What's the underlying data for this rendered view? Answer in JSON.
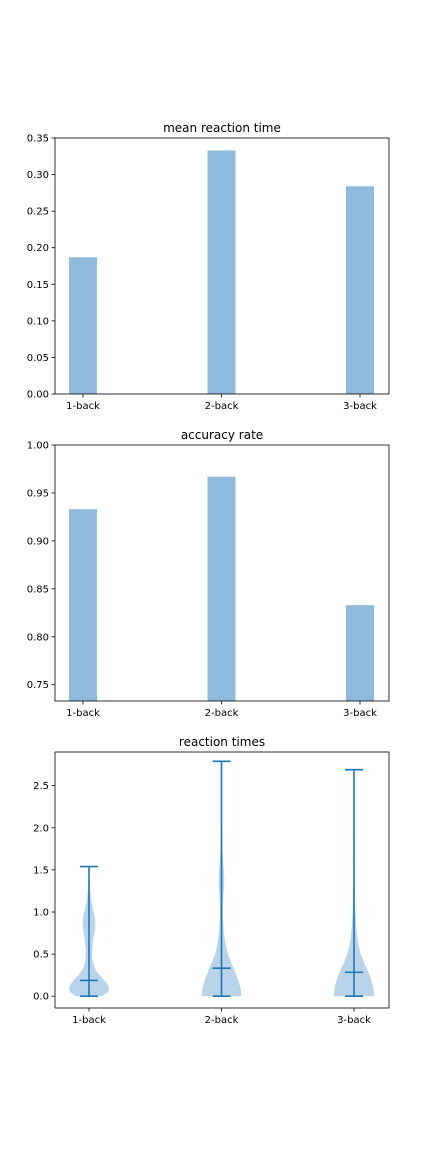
{
  "figure": {
    "background": "#ffffff",
    "bar_color": "#8fbadb",
    "violin_color": "#b8d3ea",
    "line_color": "#1f77b4"
  },
  "chart_data": [
    {
      "type": "bar",
      "title": "mean reaction time",
      "categories": [
        "1-back",
        "2-back",
        "3-back"
      ],
      "values": [
        0.187,
        0.333,
        0.284
      ],
      "ylim": [
        0,
        0.35
      ],
      "yticks": [
        0.0,
        0.05,
        0.1,
        0.15,
        0.2,
        0.25,
        0.3,
        0.35
      ],
      "ytick_labels": [
        "0.00",
        "0.05",
        "0.10",
        "0.15",
        "0.20",
        "0.25",
        "0.30",
        "0.35"
      ],
      "xlabel": "",
      "ylabel": "",
      "grid": false
    },
    {
      "type": "bar",
      "title": "accuracy rate",
      "categories": [
        "1-back",
        "2-back",
        "3-back"
      ],
      "values": [
        0.933,
        0.967,
        0.833
      ],
      "ylim": [
        0.733,
        1.0
      ],
      "yticks": [
        0.75,
        0.8,
        0.85,
        0.9,
        0.95,
        1.0
      ],
      "ytick_labels": [
        "0.75",
        "0.80",
        "0.85",
        "0.90",
        "0.95",
        "1.00"
      ],
      "xlabel": "",
      "ylabel": "",
      "grid": false
    },
    {
      "type": "violin",
      "title": "reaction times",
      "categories": [
        "1-back",
        "2-back",
        "3-back"
      ],
      "ylim": [
        -0.14,
        2.9
      ],
      "yticks": [
        0.0,
        0.5,
        1.0,
        1.5,
        2.0,
        2.5
      ],
      "ytick_labels": [
        "0.0",
        "0.5",
        "1.0",
        "1.5",
        "2.0",
        "2.5"
      ],
      "series": [
        {
          "min": 0.0,
          "max": 1.54,
          "mean": 0.187,
          "density": [
            [
              0.0,
              0.65
            ],
            [
              0.05,
              0.95
            ],
            [
              0.1,
              1.0
            ],
            [
              0.15,
              0.9
            ],
            [
              0.2,
              0.72
            ],
            [
              0.25,
              0.52
            ],
            [
              0.3,
              0.36
            ],
            [
              0.35,
              0.26
            ],
            [
              0.4,
              0.2
            ],
            [
              0.45,
              0.17
            ],
            [
              0.5,
              0.16
            ],
            [
              0.55,
              0.16
            ],
            [
              0.6,
              0.18
            ],
            [
              0.7,
              0.22
            ],
            [
              0.8,
              0.3
            ],
            [
              0.88,
              0.32
            ],
            [
              0.95,
              0.28
            ],
            [
              1.05,
              0.18
            ],
            [
              1.15,
              0.1
            ],
            [
              1.3,
              0.04
            ],
            [
              1.54,
              0.0
            ]
          ]
        },
        {
          "min": 0.0,
          "max": 2.79,
          "mean": 0.333,
          "density": [
            [
              0.0,
              1.0
            ],
            [
              0.1,
              0.95
            ],
            [
              0.2,
              0.82
            ],
            [
              0.3,
              0.66
            ],
            [
              0.4,
              0.48
            ],
            [
              0.5,
              0.32
            ],
            [
              0.6,
              0.22
            ],
            [
              0.7,
              0.15
            ],
            [
              0.8,
              0.11
            ],
            [
              0.9,
              0.08
            ],
            [
              1.0,
              0.07
            ],
            [
              1.1,
              0.08
            ],
            [
              1.2,
              0.1
            ],
            [
              1.3,
              0.13
            ],
            [
              1.4,
              0.14
            ],
            [
              1.5,
              0.12
            ],
            [
              1.6,
              0.09
            ],
            [
              1.7,
              0.06
            ],
            [
              1.85,
              0.04
            ],
            [
              2.0,
              0.03
            ],
            [
              2.2,
              0.02
            ],
            [
              2.5,
              0.01
            ],
            [
              2.79,
              0.0
            ]
          ]
        },
        {
          "min": 0.0,
          "max": 2.69,
          "mean": 0.284,
          "density": [
            [
              0.0,
              1.0
            ],
            [
              0.1,
              0.97
            ],
            [
              0.2,
              0.86
            ],
            [
              0.3,
              0.7
            ],
            [
              0.4,
              0.5
            ],
            [
              0.5,
              0.34
            ],
            [
              0.6,
              0.23
            ],
            [
              0.7,
              0.16
            ],
            [
              0.8,
              0.12
            ],
            [
              0.9,
              0.09
            ],
            [
              1.0,
              0.07
            ],
            [
              1.1,
              0.06
            ],
            [
              1.2,
              0.05
            ],
            [
              1.4,
              0.04
            ],
            [
              1.6,
              0.035
            ],
            [
              1.8,
              0.03
            ],
            [
              2.0,
              0.025
            ],
            [
              2.2,
              0.02
            ],
            [
              2.5,
              0.01
            ],
            [
              2.69,
              0.0
            ]
          ]
        }
      ],
      "xlabel": "",
      "ylabel": "",
      "grid": false
    }
  ]
}
